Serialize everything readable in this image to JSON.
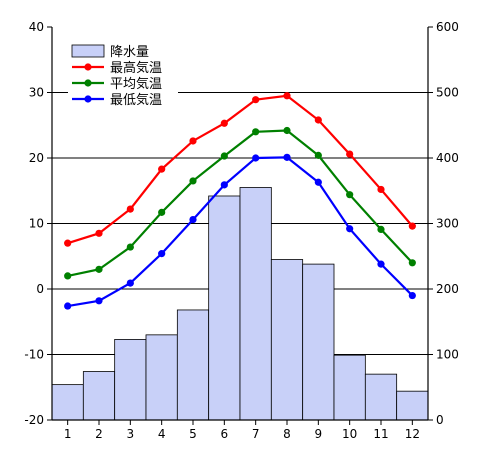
{
  "chart_data": {
    "type": "bar+line",
    "categories": [
      "1",
      "2",
      "3",
      "4",
      "5",
      "6",
      "7",
      "8",
      "9",
      "10",
      "11",
      "12"
    ],
    "precipitation": {
      "name": "降水量",
      "axis": "right",
      "values": [
        54,
        74,
        123,
        130,
        168,
        342,
        355,
        245,
        238,
        99,
        70,
        44
      ],
      "color": "#c8d0f8",
      "stroke": "#000000"
    },
    "series": [
      {
        "name": "最高気温",
        "axis": "left",
        "color": "#ff0000",
        "values": [
          7.0,
          8.5,
          12.2,
          18.3,
          22.6,
          25.3,
          28.9,
          29.5,
          25.8,
          20.6,
          15.2,
          9.6
        ]
      },
      {
        "name": "平均気温",
        "axis": "left",
        "color": "#008000",
        "values": [
          2.0,
          3.0,
          6.4,
          11.7,
          16.5,
          20.3,
          24.0,
          24.2,
          20.4,
          14.4,
          9.1,
          4.0
        ]
      },
      {
        "name": "最低気温",
        "axis": "left",
        "color": "#0000ff",
        "values": [
          -2.6,
          -1.8,
          0.9,
          5.4,
          10.6,
          15.9,
          20.0,
          20.1,
          16.3,
          9.2,
          3.8,
          -1.0
        ]
      }
    ],
    "left_axis": {
      "ticks": [
        "-20",
        "-10",
        "0",
        "10",
        "20",
        "30",
        "40"
      ],
      "min": -20,
      "max": 40
    },
    "right_axis": {
      "ticks": [
        "0",
        "100",
        "200",
        "300",
        "400",
        "500",
        "600"
      ],
      "min": 0,
      "max": 600
    },
    "grid": true,
    "legend_position": "top-left"
  }
}
